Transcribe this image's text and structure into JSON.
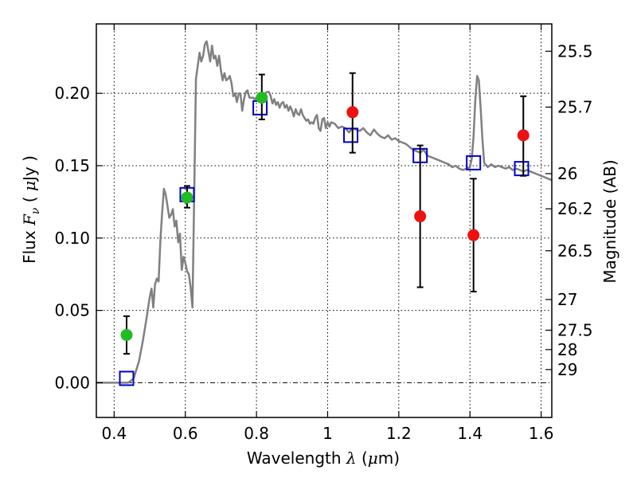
{
  "chart_data": {
    "type": "scatter",
    "title": "",
    "xlabel": "Wavelength",
    "xlabel_symbol": "λ",
    "xlabel_unit_open": "(",
    "xlabel_unit_mu": "μ",
    "xlabel_unit_rest": "m)",
    "ylabel": "Flux",
    "ylabel_symbol": "F",
    "ylabel_symbol_sub": "ν",
    "ylabel_unit_open": "(",
    "ylabel_unit_mu": "μ",
    "ylabel_unit_rest": "Jy )",
    "y2label": "Magnitude (AB)",
    "xlim": [
      0.35,
      1.63
    ],
    "ylim": [
      -0.024,
      0.248
    ],
    "x_ticks": [
      0.4,
      0.6,
      0.8,
      1.0,
      1.2,
      1.4,
      1.6
    ],
    "x_tick_labels": [
      "0.4",
      "0.6",
      "0.8",
      "1",
      "1.2",
      "1.4",
      "1.6"
    ],
    "y_ticks": [
      0.0,
      0.05,
      0.1,
      0.15,
      0.2
    ],
    "y_tick_labels": [
      "0.00",
      "0.05",
      "0.10",
      "0.15",
      "0.20"
    ],
    "y2_ticks": [
      {
        "flux": 0.2291,
        "label": "25.5"
      },
      {
        "flux": 0.1905,
        "label": "25.7"
      },
      {
        "flux": 0.1445,
        "label": "26"
      },
      {
        "flux": 0.1202,
        "label": "26.2"
      },
      {
        "flux": 0.0912,
        "label": "26.5"
      },
      {
        "flux": 0.0575,
        "label": "27"
      },
      {
        "flux": 0.0363,
        "label": "27.5"
      },
      {
        "flux": 0.0229,
        "label": "28"
      },
      {
        "flux": 0.0091,
        "label": "29"
      }
    ],
    "grid": true,
    "zero_line": true,
    "series": [
      {
        "kind": "line",
        "color": "#808080",
        "points": [
          [
            0.35,
            0.0
          ],
          [
            0.44,
            0.0
          ],
          [
            0.455,
            0.003
          ],
          [
            0.47,
            0.015
          ],
          [
            0.48,
            0.028
          ],
          [
            0.49,
            0.043
          ],
          [
            0.5,
            0.059
          ],
          [
            0.505,
            0.065
          ],
          [
            0.51,
            0.052
          ],
          [
            0.515,
            0.068
          ],
          [
            0.52,
            0.072
          ],
          [
            0.525,
            0.07
          ],
          [
            0.53,
            0.098
          ],
          [
            0.535,
            0.118
          ],
          [
            0.54,
            0.134
          ],
          [
            0.545,
            0.13
          ],
          [
            0.55,
            0.122
          ],
          [
            0.555,
            0.114
          ],
          [
            0.56,
            0.116
          ],
          [
            0.565,
            0.12
          ],
          [
            0.57,
            0.108
          ],
          [
            0.575,
            0.112
          ],
          [
            0.58,
            0.097
          ],
          [
            0.585,
            0.103
          ],
          [
            0.59,
            0.078
          ],
          [
            0.595,
            0.087
          ],
          [
            0.6,
            0.083
          ],
          [
            0.605,
            0.077
          ],
          [
            0.61,
            0.075
          ],
          [
            0.615,
            0.066
          ],
          [
            0.62,
            0.052
          ],
          [
            0.625,
            0.13
          ],
          [
            0.63,
            0.21
          ],
          [
            0.64,
            0.228
          ],
          [
            0.645,
            0.222
          ],
          [
            0.65,
            0.226
          ],
          [
            0.655,
            0.234
          ],
          [
            0.66,
            0.236
          ],
          [
            0.665,
            0.229
          ],
          [
            0.67,
            0.222
          ],
          [
            0.675,
            0.233
          ],
          [
            0.68,
            0.224
          ],
          [
            0.685,
            0.226
          ],
          [
            0.69,
            0.219
          ],
          [
            0.695,
            0.226
          ],
          [
            0.7,
            0.216
          ],
          [
            0.705,
            0.209
          ],
          [
            0.71,
            0.214
          ],
          [
            0.715,
            0.209
          ],
          [
            0.72,
            0.21
          ],
          [
            0.725,
            0.212
          ],
          [
            0.73,
            0.207
          ],
          [
            0.735,
            0.198
          ],
          [
            0.74,
            0.2
          ],
          [
            0.745,
            0.194
          ],
          [
            0.75,
            0.2
          ],
          [
            0.755,
            0.2
          ],
          [
            0.76,
            0.188
          ],
          [
            0.765,
            0.196
          ],
          [
            0.77,
            0.201
          ],
          [
            0.775,
            0.202
          ],
          [
            0.78,
            0.197
          ],
          [
            0.785,
            0.197
          ],
          [
            0.79,
            0.197
          ],
          [
            0.795,
            0.196
          ],
          [
            0.8,
            0.197
          ],
          [
            0.805,
            0.196
          ],
          [
            0.81,
            0.2
          ],
          [
            0.815,
            0.198
          ],
          [
            0.82,
            0.196
          ],
          [
            0.825,
            0.2
          ],
          [
            0.83,
            0.201
          ],
          [
            0.835,
            0.201
          ],
          [
            0.84,
            0.198
          ],
          [
            0.845,
            0.193
          ],
          [
            0.85,
            0.196
          ],
          [
            0.855,
            0.192
          ],
          [
            0.86,
            0.194
          ],
          [
            0.865,
            0.19
          ],
          [
            0.87,
            0.193
          ],
          [
            0.875,
            0.194
          ],
          [
            0.88,
            0.19
          ],
          [
            0.885,
            0.192
          ],
          [
            0.89,
            0.188
          ],
          [
            0.895,
            0.191
          ],
          [
            0.9,
            0.188
          ],
          [
            0.905,
            0.184
          ],
          [
            0.91,
            0.189
          ],
          [
            0.915,
            0.186
          ],
          [
            0.92,
            0.185
          ],
          [
            0.925,
            0.189
          ],
          [
            0.93,
            0.185
          ],
          [
            0.935,
            0.183
          ],
          [
            0.94,
            0.181
          ],
          [
            0.945,
            0.182
          ],
          [
            0.95,
            0.179
          ],
          [
            0.955,
            0.18
          ],
          [
            0.96,
            0.179
          ],
          [
            0.965,
            0.183
          ],
          [
            0.97,
            0.185
          ],
          [
            0.975,
            0.176
          ],
          [
            0.98,
            0.174
          ],
          [
            0.985,
            0.182
          ],
          [
            0.99,
            0.183
          ],
          [
            0.995,
            0.176
          ],
          [
            1.0,
            0.18
          ],
          [
            1.005,
            0.177
          ],
          [
            1.01,
            0.18
          ],
          [
            1.02,
            0.179
          ],
          [
            1.03,
            0.176
          ],
          [
            1.04,
            0.177
          ],
          [
            1.05,
            0.176
          ],
          [
            1.06,
            0.173
          ],
          [
            1.07,
            0.176
          ],
          [
            1.08,
            0.175
          ],
          [
            1.09,
            0.174
          ],
          [
            1.1,
            0.176
          ],
          [
            1.11,
            0.173
          ],
          [
            1.12,
            0.171
          ],
          [
            1.13,
            0.175
          ],
          [
            1.14,
            0.172
          ],
          [
            1.15,
            0.17
          ],
          [
            1.16,
            0.169
          ],
          [
            1.17,
            0.171
          ],
          [
            1.18,
            0.168
          ],
          [
            1.19,
            0.169
          ],
          [
            1.2,
            0.167
          ],
          [
            1.21,
            0.166
          ],
          [
            1.22,
            0.165
          ],
          [
            1.23,
            0.163
          ],
          [
            1.24,
            0.161
          ],
          [
            1.25,
            0.16
          ],
          [
            1.26,
            0.159
          ],
          [
            1.27,
            0.161
          ],
          [
            1.28,
            0.157
          ],
          [
            1.29,
            0.156
          ],
          [
            1.3,
            0.155
          ],
          [
            1.31,
            0.154
          ],
          [
            1.32,
            0.153
          ],
          [
            1.33,
            0.152
          ],
          [
            1.34,
            0.151
          ],
          [
            1.35,
            0.149
          ],
          [
            1.36,
            0.15
          ],
          [
            1.37,
            0.148
          ],
          [
            1.38,
            0.147
          ],
          [
            1.39,
            0.148
          ],
          [
            1.4,
            0.149
          ],
          [
            1.405,
            0.155
          ],
          [
            1.41,
            0.17
          ],
          [
            1.415,
            0.195
          ],
          [
            1.42,
            0.212
          ],
          [
            1.425,
            0.209
          ],
          [
            1.43,
            0.19
          ],
          [
            1.435,
            0.168
          ],
          [
            1.44,
            0.152
          ],
          [
            1.45,
            0.149
          ],
          [
            1.46,
            0.151
          ],
          [
            1.47,
            0.149
          ],
          [
            1.48,
            0.15
          ],
          [
            1.49,
            0.149
          ],
          [
            1.5,
            0.148
          ],
          [
            1.51,
            0.149
          ],
          [
            1.52,
            0.147
          ],
          [
            1.53,
            0.148
          ],
          [
            1.54,
            0.147
          ],
          [
            1.55,
            0.146
          ],
          [
            1.56,
            0.147
          ],
          [
            1.57,
            0.146
          ],
          [
            1.58,
            0.145
          ],
          [
            1.59,
            0.144
          ],
          [
            1.6,
            0.143
          ],
          [
            1.61,
            0.142
          ],
          [
            1.62,
            0.141
          ],
          [
            1.63,
            0.14
          ]
        ]
      },
      {
        "kind": "square",
        "color": "#0000cc",
        "points": [
          [
            0.435,
            0.003
          ],
          [
            0.605,
            0.13
          ],
          [
            0.81,
            0.19
          ],
          [
            1.065,
            0.171
          ],
          [
            1.26,
            0.157
          ],
          [
            1.41,
            0.152
          ],
          [
            1.545,
            0.148
          ]
        ]
      },
      {
        "kind": "dot",
        "color": "#22bb22",
        "points": [
          {
            "x": 0.435,
            "y": 0.033,
            "lo": 0.02,
            "hi": 0.046
          },
          {
            "x": 0.605,
            "y": 0.128,
            "lo": 0.121,
            "hi": 0.136
          },
          {
            "x": 0.815,
            "y": 0.197,
            "lo": 0.182,
            "hi": 0.213
          }
        ]
      },
      {
        "kind": "dot",
        "color": "#ee1111",
        "points": [
          {
            "x": 1.07,
            "y": 0.187,
            "lo": 0.159,
            "hi": 0.214
          },
          {
            "x": 1.26,
            "y": 0.115,
            "lo": 0.066,
            "hi": 0.164
          },
          {
            "x": 1.41,
            "y": 0.102,
            "lo": 0.063,
            "hi": 0.141
          },
          {
            "x": 1.55,
            "y": 0.171,
            "lo": 0.143,
            "hi": 0.198
          }
        ]
      }
    ]
  }
}
